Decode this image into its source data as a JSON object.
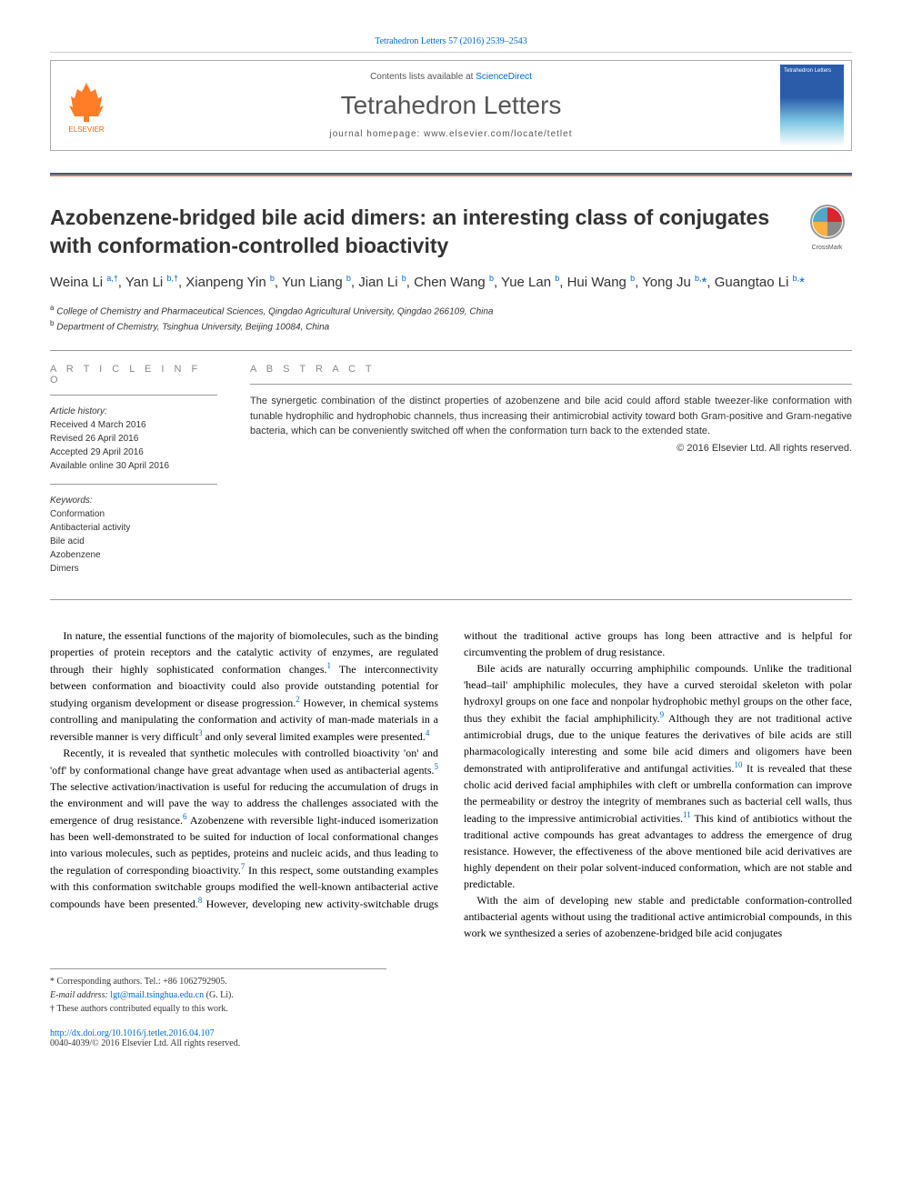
{
  "citation": "Tetrahedron Letters 57 (2016) 2539–2543",
  "header": {
    "contents_prefix": "Contents lists available at ",
    "contents_link": "ScienceDirect",
    "journal_name": "Tetrahedron Letters",
    "homepage": "journal homepage: www.elsevier.com/locate/tetlet",
    "elsevier_label": "ELSEVIER",
    "cover_label": "Tetrahedron Letters"
  },
  "crossmark": "CrossMark",
  "title": "Azobenzene-bridged bile acid dimers: an interesting class of conjugates with conformation-controlled bioactivity",
  "authors_html": "Weina Li <sup>a,†</sup>, Yan Li <sup>b,†</sup>, Xianpeng Yin <sup>b</sup>, Yun Liang <sup>b</sup>, Jian Li <sup>b</sup>, Chen Wang <sup>b</sup>, Yue Lan <sup>b</sup>, Hui Wang <sup>b</sup>, Yong Ju <sup>b,</sup><span class='star'>*</span>, Guangtao Li <sup>b,</sup><span class='star'>*</span>",
  "affiliations": [
    {
      "sup": "a",
      "text": "College of Chemistry and Pharmaceutical Sciences, Qingdao Agricultural University, Qingdao 266109, China"
    },
    {
      "sup": "b",
      "text": "Department of Chemistry, Tsinghua University, Beijing 10084, China"
    }
  ],
  "info_heading": "A R T I C L E   I N F O",
  "abstract_heading": "A B S T R A C T",
  "history": {
    "label": "Article history:",
    "received": "Received 4 March 2016",
    "revised": "Revised 26 April 2016",
    "accepted": "Accepted 29 April 2016",
    "online": "Available online 30 April 2016"
  },
  "keywords": {
    "label": "Keywords:",
    "items": [
      "Conformation",
      "Antibacterial activity",
      "Bile acid",
      "Azobenzene",
      "Dimers"
    ]
  },
  "abstract": "The synergetic combination of the distinct properties of azobenzene and bile acid could afford stable tweezer-like conformation with tunable hydrophilic and hydrophobic channels, thus increasing their antimicrobial activity toward both Gram-positive and Gram-negative bacteria, which can be conveniently switched off when the conformation turn back to the extended state.",
  "copyright": "© 2016 Elsevier Ltd. All rights reserved.",
  "body": {
    "p1": "In nature, the essential functions of the majority of biomolecules, such as the binding properties of protein receptors and the catalytic activity of enzymes, are regulated through their highly sophisticated conformation changes.<sup>1</sup> The interconnectivity between conformation and bioactivity could also provide outstanding potential for studying organism development or disease progression.<sup>2</sup> However, in chemical systems controlling and manipulating the conformation and activity of man-made materials in a reversible manner is very difficult<sup>3</sup> and only several limited examples were presented.<sup>4</sup>",
    "p2": "Recently, it is revealed that synthetic molecules with controlled bioactivity 'on' and 'off' by conformational change have great advantage when used as antibacterial agents.<sup>5</sup> The selective activation/inactivation is useful for reducing the accumulation of drugs in the environment and will pave the way to address the challenges associated with the emergence of drug resistance.<sup>6</sup> Azobenzene with reversible light-induced isomerization has been well-demonstrated to be suited for induction of local conformational changes into various molecules, such as peptides, proteins and nucleic acids, and thus leading to the regulation of corresponding bioactivity.<sup>7</sup> In this respect, some outstanding examples with this conformation switchable groups modified the well-known antibacterial active compounds have been presented.<sup>8</sup> However, developing new activity-switchable drugs without the traditional active groups has long been attractive and is helpful for circumventing the problem of drug resistance.",
    "p3": "Bile acids are naturally occurring amphiphilic compounds. Unlike the traditional 'head–tail' amphiphilic molecules, they have a curved steroidal skeleton with polar hydroxyl groups on one face and nonpolar hydrophobic methyl groups on the other face, thus they exhibit the facial amphiphilicity.<sup>9</sup> Although they are not traditional active antimicrobial drugs, due to the unique features the derivatives of bile acids are still pharmacologically interesting and some bile acid dimers and oligomers have been demonstrated with antiproliferative and antifungal activities.<sup>10</sup> It is revealed that these cholic acid derived facial amphiphiles with cleft or umbrella conformation can improve the permeability or destroy the integrity of membranes such as bacterial cell walls, thus leading to the impressive antimicrobial activities.<sup>11</sup> This kind of antibiotics without the traditional active compounds has great advantages to address the emergence of drug resistance. However, the effectiveness of the above mentioned bile acid derivatives are highly dependent on their polar solvent-induced conformation, which are not stable and predictable.",
    "p4": "With the aim of developing new stable and predictable conformation-controlled antibacterial agents without using the traditional active antimicrobial compounds, in this work we synthesized a series of azobenzene-bridged bile acid conjugates"
  },
  "footnotes": {
    "corr": "* Corresponding authors. Tel.: +86 1062792905.",
    "email_label": "E-mail address: ",
    "email": "lgt@mail.tsinghua.edu.cn",
    "email_suffix": " (G. Li).",
    "equal": "† These authors contributed equally to this work."
  },
  "doi": "http://dx.doi.org/10.1016/j.tetlet.2016.04.107",
  "issn": "0040-4039/© 2016 Elsevier Ltd. All rights reserved.",
  "colors": {
    "link": "#0066cc",
    "orange": "#e8792f",
    "blue_bar": "#2a5caa",
    "elsevier_orange": "#ff6600"
  }
}
